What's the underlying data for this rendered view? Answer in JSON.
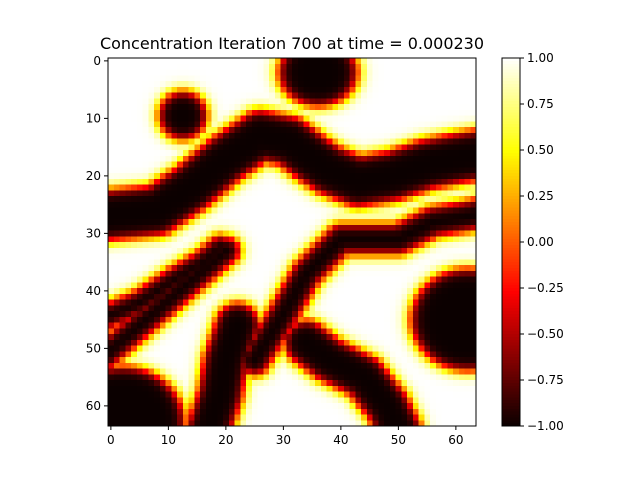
{
  "chart_data": {
    "type": "heatmap",
    "title": "Concentration Iteration 700 at time = 0.000230",
    "xlabel": "",
    "ylabel": "",
    "grid": false,
    "shape": [
      64,
      64
    ],
    "xlim": [
      -0.5,
      63.5
    ],
    "ylim": [
      63.5,
      -0.5
    ],
    "x_ticks": [
      0,
      10,
      20,
      30,
      40,
      50,
      60
    ],
    "y_ticks": [
      0,
      10,
      20,
      30,
      40,
      50,
      60
    ],
    "colormap": "hot",
    "value_range": [
      -1.0,
      1.0
    ],
    "colorbar": {
      "ticks": [
        1.0,
        0.75,
        0.5,
        0.25,
        0.0,
        -0.25,
        -0.5,
        -0.75,
        -1.0
      ],
      "tick_labels": [
        "1.00",
        "0.75",
        "0.50",
        "0.25",
        "0.00",
        "−0.25",
        "−0.50",
        "−0.75",
        "−1.00"
      ]
    },
    "cell_size": 1,
    "description_of_values": "Each cell holds a concentration value between -1 and 1; dark cells are about -1, bright cells about 1.",
    "low_regions": [
      {
        "shape": "ellipse",
        "cx": 36,
        "cy": 2,
        "rx": 7,
        "ry": 6
      },
      {
        "shape": "ellipse",
        "cx": 12.5,
        "cy": 9.5,
        "rx": 4.3,
        "ry": 4.3
      },
      {
        "shape": "polyline",
        "width": 9,
        "points": [
          [
            -2,
            27
          ],
          [
            8,
            26
          ],
          [
            14,
            22
          ],
          [
            20,
            17
          ],
          [
            26,
            13
          ],
          [
            31,
            14
          ],
          [
            35,
            17
          ],
          [
            38,
            19
          ],
          [
            43,
            21
          ],
          [
            49,
            20
          ],
          [
            55,
            18
          ],
          [
            60,
            17
          ],
          [
            66,
            16
          ]
        ]
      },
      {
        "shape": "polyline",
        "width": 4.5,
        "points": [
          [
            -2,
            45
          ],
          [
            5,
            42
          ],
          [
            11,
            38
          ],
          [
            16,
            35
          ],
          [
            19,
            32.5
          ]
        ]
      },
      {
        "shape": "polyline",
        "width": 5,
        "points": [
          [
            -2,
            52
          ],
          [
            20,
            33
          ]
        ]
      },
      {
        "shape": "polyline",
        "width": 5.5,
        "points": [
          [
            25,
            52
          ],
          [
            30,
            44
          ],
          [
            34,
            37
          ],
          [
            40,
            31
          ],
          [
            46,
            31
          ],
          [
            50,
            31
          ],
          [
            56,
            28
          ],
          [
            62,
            27
          ],
          [
            66,
            26
          ]
        ]
      },
      {
        "shape": "polyline",
        "width": 8,
        "points": [
          [
            17,
            64
          ],
          [
            19,
            58
          ],
          [
            20,
            52
          ],
          [
            22,
            46
          ]
        ]
      },
      {
        "shape": "polyline",
        "width": 8,
        "points": [
          [
            34,
            49
          ],
          [
            38,
            52
          ],
          [
            44,
            55
          ],
          [
            48,
            60
          ],
          [
            50,
            64
          ]
        ]
      },
      {
        "shape": "ellipse",
        "cx": 62,
        "cy": 45,
        "rx": 10,
        "ry": 9
      },
      {
        "shape": "ellipse",
        "cx": 2,
        "cy": 63,
        "rx": 11,
        "ry": 10
      }
    ]
  }
}
